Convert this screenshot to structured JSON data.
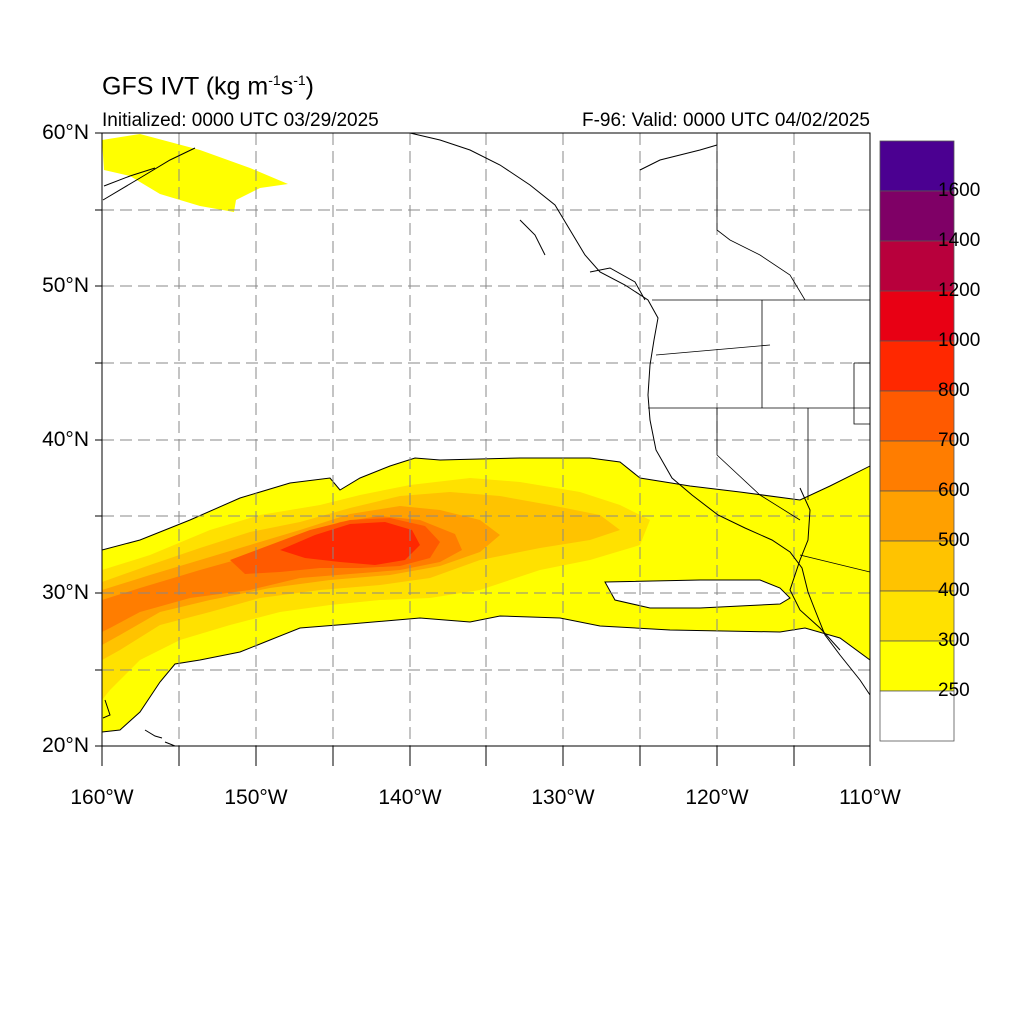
{
  "header": {
    "title": "GFS IVT (kg m",
    "title_sup1": "-1",
    "title_s": "s",
    "title_sup2": "-1",
    "title_close": ")",
    "initialized": "Initialized: 0000 UTC 03/29/2025",
    "valid": "F-96: Valid: 0000 UTC 04/02/2025"
  },
  "map": {
    "lat_labels": [
      "60°N",
      "50°N",
      "40°N",
      "30°N",
      "20°N"
    ],
    "lon_labels": [
      "160°W",
      "150°W",
      "140°W",
      "130°W",
      "120°W",
      "110°W"
    ],
    "extent": {
      "lon": [
        -160,
        -110
      ],
      "lat": [
        20,
        60
      ]
    }
  },
  "colorbar": {
    "labels": [
      "1600",
      "1400",
      "1200",
      "1000",
      "800",
      "700",
      "600",
      "500",
      "400",
      "300",
      "250"
    ],
    "colors": [
      "#4b0091",
      "#7f0066",
      "#b8003c",
      "#e80014",
      "#ff2800",
      "#ff5a00",
      "#ff7d00",
      "#ffa000",
      "#ffc300",
      "#ffe100",
      "#ffff00",
      "#ffffff"
    ]
  },
  "ivt_colors": {
    "250": "#ffff00",
    "300": "#ffe100",
    "400": "#ffc300",
    "500": "#ffa000",
    "600": "#ff7d00",
    "700": "#ff5a00",
    "800": "#ff2800"
  }
}
